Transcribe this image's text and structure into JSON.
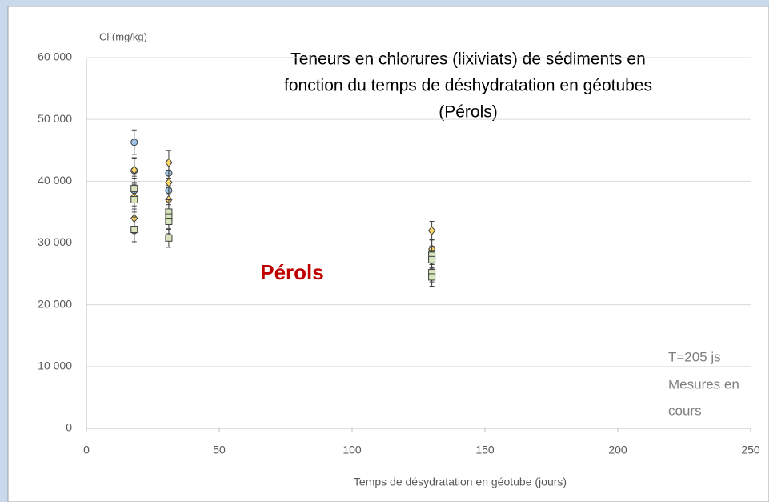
{
  "chart_data": {
    "type": "scatter",
    "title": [
      "Teneurs en chlorures (lixiviats) de sédiments en",
      "fonction du temps de déshydratation en géotubes",
      "(Pérols)"
    ],
    "y_label": "Cl (mg/kg)",
    "x_label": "Temps de désydratation en géotube (jours)",
    "annotations": {
      "site": "Pérols",
      "note": [
        "T=205 js",
        "Mesures en",
        "cours"
      ]
    },
    "xlim": [
      0,
      250
    ],
    "xticks": [
      0,
      50,
      100,
      150,
      200,
      250
    ],
    "ylim": [
      0,
      60000
    ],
    "yticks": [
      {
        "value": 0,
        "label": "0"
      },
      {
        "value": 10000,
        "label": "10 000"
      },
      {
        "value": 20000,
        "label": "20 000"
      },
      {
        "value": 30000,
        "label": "30 000"
      },
      {
        "value": 40000,
        "label": "40 000"
      },
      {
        "value": 50000,
        "label": "50 000"
      },
      {
        "value": 60000,
        "label": "60 000"
      }
    ],
    "grid": true,
    "series": [
      {
        "marker": "circle",
        "color": "#9dc3e6",
        "x": [
          18,
          18,
          18,
          18,
          31,
          31,
          130
        ],
        "values": [
          46300,
          41700,
          38500,
          32000,
          41300,
          38500,
          28500
        ],
        "errors": [
          2000,
          2000,
          2000,
          2000,
          2000,
          2000,
          2000
        ]
      },
      {
        "marker": "diamond",
        "color": "#ffd966",
        "x": [
          18,
          18,
          18,
          31,
          31,
          31,
          130,
          130
        ],
        "values": [
          41800,
          37500,
          34000,
          43000,
          39800,
          37000,
          32000,
          29000
        ],
        "errors": [
          2000,
          2000,
          2000,
          2000,
          2000,
          2000,
          1500,
          1500
        ]
      },
      {
        "marker": "square",
        "color": "#d8e4bc",
        "x": [
          18,
          18,
          18,
          31,
          31,
          31,
          31,
          130,
          130,
          130,
          130
        ],
        "values": [
          38800,
          37000,
          32200,
          35000,
          34200,
          33500,
          30800,
          28000,
          27300,
          25200,
          24500
        ],
        "errors": [
          2000,
          2000,
          2000,
          2000,
          2000,
          2000,
          1500,
          1500,
          1500,
          1500,
          1500
        ]
      }
    ]
  }
}
